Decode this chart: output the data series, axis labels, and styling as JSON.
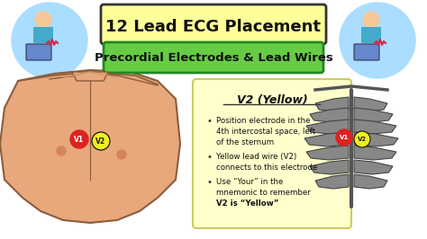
{
  "bg_color": "#ffffff",
  "title_text": "12 Lead ECG Placement",
  "title_bg": "#ffff99",
  "title_border": "#333333",
  "subtitle_text": "Precordial Electrodes & Lead Wires",
  "subtitle_bg": "#66cc44",
  "subtitle_border": "#228822",
  "info_title": "V2 (Yellow)",
  "info_bg": "#ffffcc",
  "info_border": "#cccc66",
  "bullet1_line1": "Position electrode in the",
  "bullet1_line2": "4th intercostal space, left",
  "bullet1_line3": "of the sternum",
  "bullet2_line1": "Yellow lead wire (V2)",
  "bullet2_line2": "connects to this electrode",
  "bullet3_line1": "Use “Your” in the",
  "bullet3_line2": "mnemonic to remember",
  "bullet3_line3": "V2 is “Yellow”",
  "v1_color": "#dd2222",
  "v2_color": "#eeee22",
  "v1_label": "V1",
  "v2_label": "V2",
  "electrode_border": "#000000"
}
